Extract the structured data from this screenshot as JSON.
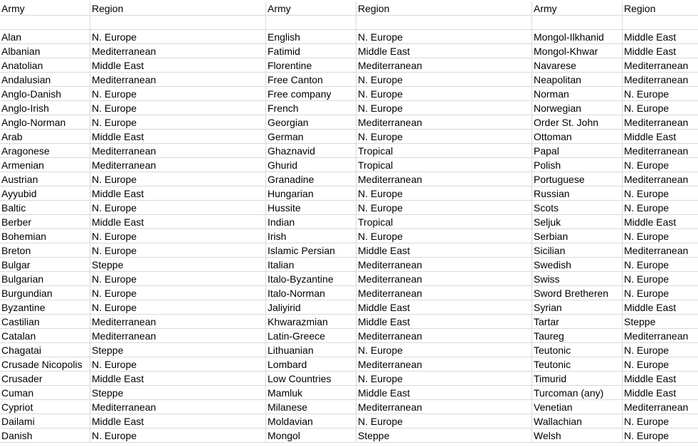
{
  "header": [
    "Army",
    "Region",
    "Army",
    "Region",
    "Army",
    "Region"
  ],
  "rows": [
    [
      "Alan",
      "N. Europe",
      "English",
      "N. Europe",
      "Mongol-Ilkhanid",
      "Middle East"
    ],
    [
      "Albanian",
      "Mediterranean",
      "Fatimid",
      "Middle East",
      "Mongol-Khwar",
      "Middle East"
    ],
    [
      "Anatolian",
      "Middle East",
      "Florentine",
      "Mediterranean",
      "Navarese",
      "Mediterranean"
    ],
    [
      "Andalusian",
      "Mediterranean",
      "Free Canton",
      "N. Europe",
      "Neapolitan",
      "Mediterranean"
    ],
    [
      "Anglo-Danish",
      "N. Europe",
      "Free company",
      "N. Europe",
      "Norman",
      "N. Europe"
    ],
    [
      "Anglo-Irish",
      "N. Europe",
      "French",
      "N. Europe",
      "Norwegian",
      "N. Europe"
    ],
    [
      "Anglo-Norman",
      "N. Europe",
      "Georgian",
      "Mediterranean",
      "Order St. John",
      "Mediterranean"
    ],
    [
      "Arab",
      "Middle East",
      "German",
      "N. Europe",
      "Ottoman",
      "Middle East"
    ],
    [
      "Aragonese",
      "Mediterranean",
      "Ghaznavid",
      "Tropical",
      "Papal",
      "Mediterranean"
    ],
    [
      "Armenian",
      "Mediterranean",
      "Ghurid",
      "Tropical",
      "Polish",
      "N. Europe"
    ],
    [
      "Austrian",
      "N. Europe",
      "Granadine",
      "Mediterranean",
      "Portuguese",
      "Mediterranean"
    ],
    [
      "Ayyubid",
      "Middle East",
      "Hungarian",
      "N. Europe",
      "Russian",
      "N. Europe"
    ],
    [
      "Baltic",
      "N. Europe",
      "Hussite",
      "N. Europe",
      "Scots",
      "N. Europe"
    ],
    [
      "Berber",
      "Middle East",
      "Indian",
      "Tropical",
      "Seljuk",
      "Middle East"
    ],
    [
      "Bohemian",
      "N. Europe",
      "Irish",
      "N. Europe",
      "Serbian",
      "N. Europe"
    ],
    [
      "Breton",
      "N. Europe",
      "Islamic Persian",
      "Middle East",
      "Sicilian",
      "Mediterranean"
    ],
    [
      "Bulgar",
      "Steppe",
      "Italian",
      "Mediterranean",
      "Swedish",
      "N. Europe"
    ],
    [
      "Bulgarian",
      "N. Europe",
      "Italo-Byzantine",
      "Mediterranean",
      "Swiss",
      "N. Europe"
    ],
    [
      "Burgundian",
      "N. Europe",
      "Italo-Norman",
      "Mediterranean",
      "Sword Bretheren",
      "N. Europe"
    ],
    [
      "Byzantine",
      "N. Europe",
      "Jaliyirid",
      "Middle East",
      "Syrian",
      "Middle East"
    ],
    [
      "Castilian",
      "Mediterranean",
      "Khwarazmian",
      "Middle East",
      "Tartar",
      "Steppe"
    ],
    [
      "Catalan",
      "Mediterranean",
      "Latin-Greece",
      "Mediterranean",
      "Taureg",
      "Mediterranean"
    ],
    [
      "Chagatai",
      "Steppe",
      "Lithuanian",
      "N. Europe",
      "Teutonic",
      "N. Europe"
    ],
    [
      "Crusade Nicopolis",
      "N. Europe",
      "Lombard",
      "Mediterranean",
      "Teutonic",
      "N. Europe"
    ],
    [
      "Crusader",
      "Middle East",
      "Low Countries",
      "N. Europe",
      "Timurid",
      "Middle East"
    ],
    [
      "Cuman",
      "Steppe",
      "Mamluk",
      "Middle East",
      "Turcoman (any)",
      "Middle East"
    ],
    [
      "Cypriot",
      "Mediterranean",
      "Milanese",
      "Mediterranean",
      "Venetian",
      "Mediterranean"
    ],
    [
      "Dailami",
      "Middle East",
      "Moldavian",
      "N. Europe",
      "Wallachian",
      "N. Europe"
    ],
    [
      "Danish",
      "N. Europe",
      "Mongol",
      "Steppe",
      "Welsh",
      "N. Europe"
    ]
  ]
}
